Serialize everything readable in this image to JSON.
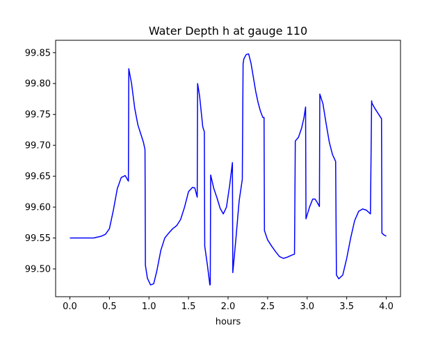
{
  "chart_data": {
    "type": "line",
    "title": "Water Depth h at gauge 110",
    "xlabel": "hours",
    "ylabel": "",
    "xlim": [
      -0.18,
      4.18
    ],
    "ylim": [
      99.455,
      99.87
    ],
    "xticks": [
      0.0,
      0.5,
      1.0,
      1.5,
      2.0,
      2.5,
      3.0,
      3.5,
      4.0
    ],
    "xtick_labels": [
      "0.0",
      "0.5",
      "1.0",
      "1.5",
      "2.0",
      "2.5",
      "3.0",
      "3.5",
      "4.0"
    ],
    "yticks": [
      99.5,
      99.55,
      99.6,
      99.65,
      99.7,
      99.75,
      99.8,
      99.85
    ],
    "ytick_labels": [
      "99.50",
      "99.55",
      "99.60",
      "99.65",
      "99.70",
      "99.75",
      "99.80",
      "99.85"
    ],
    "grid": false,
    "series": [
      {
        "color": "#0000ff",
        "x": [
          0.0,
          0.1,
          0.2,
          0.3,
          0.4,
          0.45,
          0.5,
          0.55,
          0.6,
          0.65,
          0.7,
          0.74,
          0.745,
          0.78,
          0.82,
          0.86,
          0.9,
          0.93,
          0.95,
          0.955,
          0.98,
          1.02,
          1.06,
          1.1,
          1.15,
          1.2,
          1.25,
          1.3,
          1.35,
          1.4,
          1.45,
          1.5,
          1.55,
          1.58,
          1.61,
          1.615,
          1.64,
          1.68,
          1.7,
          1.705,
          1.74,
          1.77,
          1.775,
          1.78,
          1.82,
          1.86,
          1.9,
          1.94,
          1.98,
          2.02,
          2.055,
          2.06,
          2.1,
          2.14,
          2.18,
          2.19,
          2.2,
          2.23,
          2.26,
          2.29,
          2.32,
          2.35,
          2.38,
          2.41,
          2.44,
          2.455,
          2.46,
          2.5,
          2.55,
          2.6,
          2.65,
          2.7,
          2.75,
          2.8,
          2.84,
          2.85,
          2.89,
          2.93,
          2.96,
          2.98,
          2.985,
          3.03,
          3.07,
          3.1,
          3.13,
          3.155,
          3.16,
          3.2,
          3.24,
          3.28,
          3.32,
          3.36,
          3.37,
          3.4,
          3.45,
          3.5,
          3.55,
          3.6,
          3.65,
          3.7,
          3.75,
          3.8,
          3.815,
          3.82,
          3.85,
          3.9,
          3.94,
          3.945,
          3.97,
          4.0
        ],
        "y": [
          99.55,
          99.55,
          99.55,
          99.55,
          99.553,
          99.556,
          99.565,
          99.595,
          99.63,
          99.648,
          99.651,
          99.642,
          99.824,
          99.8,
          99.76,
          99.733,
          99.717,
          99.705,
          99.693,
          99.506,
          99.485,
          99.474,
          99.476,
          99.497,
          99.53,
          99.55,
          99.558,
          99.565,
          99.57,
          99.58,
          99.6,
          99.625,
          99.632,
          99.631,
          99.616,
          99.8,
          99.78,
          99.73,
          99.722,
          99.537,
          99.505,
          99.474,
          99.475,
          99.652,
          99.63,
          99.615,
          99.598,
          99.589,
          99.6,
          99.635,
          99.672,
          99.494,
          99.55,
          99.61,
          99.645,
          99.832,
          99.84,
          99.847,
          99.848,
          99.833,
          99.81,
          99.787,
          99.769,
          99.755,
          99.745,
          99.745,
          99.562,
          99.547,
          99.537,
          99.528,
          99.52,
          99.517,
          99.519,
          99.522,
          99.524,
          99.707,
          99.713,
          99.728,
          99.745,
          99.762,
          99.581,
          99.6,
          99.613,
          99.613,
          99.607,
          99.601,
          99.783,
          99.767,
          99.735,
          99.705,
          99.685,
          99.674,
          99.49,
          99.484,
          99.49,
          99.517,
          99.55,
          99.578,
          99.593,
          99.597,
          99.595,
          99.589,
          99.772,
          99.768,
          99.761,
          99.751,
          99.743,
          99.558,
          99.555,
          99.553
        ]
      }
    ]
  }
}
